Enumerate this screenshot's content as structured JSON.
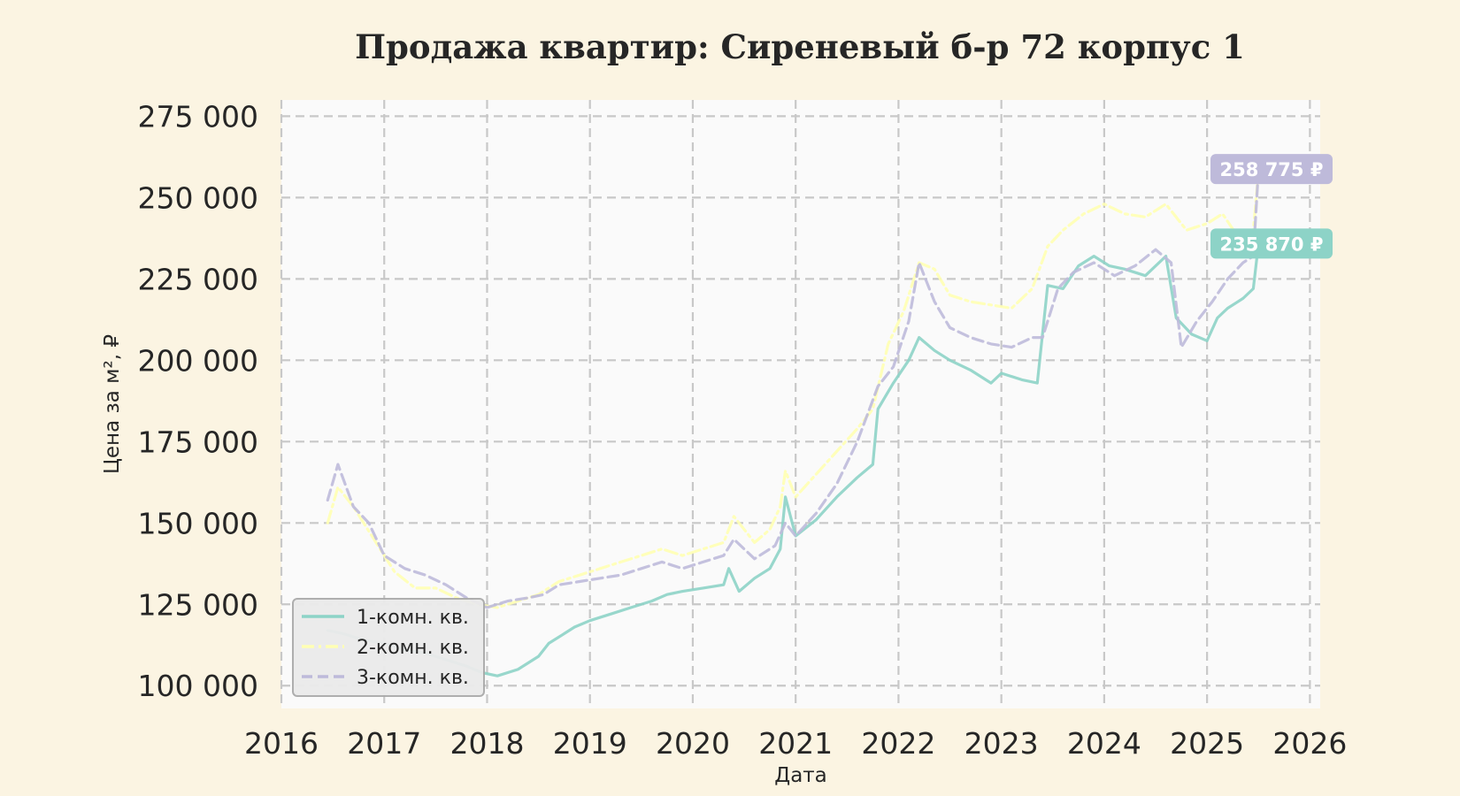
{
  "chart_data": {
    "type": "line",
    "title": "Продажа квартир: Сиреневый б-р 72 корпус 1",
    "xlabel": "Дата",
    "ylabel": "Цена за м², ₽",
    "xlim": [
      2016.0,
      2026.1
    ],
    "ylim": [
      93000,
      280000
    ],
    "grid": true,
    "legend_position": "lower-left",
    "x_ticks": [
      "2016",
      "2017",
      "2018",
      "2019",
      "2020",
      "2021",
      "2022",
      "2023",
      "2024",
      "2025",
      "2026"
    ],
    "y_ticks": [
      {
        "value": 100000,
        "label": "100 000"
      },
      {
        "value": 125000,
        "label": "125 000"
      },
      {
        "value": 150000,
        "label": "150 000"
      },
      {
        "value": 175000,
        "label": "175 000"
      },
      {
        "value": 200000,
        "label": "200 000"
      },
      {
        "value": 225000,
        "label": "225 000"
      },
      {
        "value": 250000,
        "label": "250 000"
      },
      {
        "value": 275000,
        "label": "275 000"
      }
    ],
    "series": [
      {
        "name": "1-комн. кв.",
        "color": "#8dd3c7",
        "dash": "solid",
        "end_label": "235 870 ₽",
        "x": [
          2016.45,
          2016.6,
          2016.8,
          2017.0,
          2017.2,
          2017.4,
          2017.6,
          2017.8,
          2017.95,
          2018.1,
          2018.3,
          2018.5,
          2018.6,
          2018.75,
          2018.85,
          2019.0,
          2019.2,
          2019.4,
          2019.6,
          2019.75,
          2019.9,
          2020.1,
          2020.3,
          2020.35,
          2020.45,
          2020.6,
          2020.75,
          2020.85,
          2020.9,
          2021.0,
          2021.2,
          2021.4,
          2021.6,
          2021.75,
          2021.8,
          2021.95,
          2022.1,
          2022.2,
          2022.35,
          2022.5,
          2022.7,
          2022.9,
          2023.0,
          2023.2,
          2023.35,
          2023.45,
          2023.6,
          2023.75,
          2023.9,
          2024.05,
          2024.2,
          2024.4,
          2024.6,
          2024.7,
          2024.85,
          2025.0,
          2025.1,
          2025.2,
          2025.35,
          2025.45,
          2025.5
        ],
        "y": [
          117000,
          116000,
          114000,
          113000,
          111000,
          110000,
          108000,
          106000,
          104000,
          103000,
          105000,
          109000,
          113000,
          116000,
          118000,
          120000,
          122000,
          124000,
          126000,
          128000,
          129000,
          130000,
          131000,
          136000,
          129000,
          133000,
          136000,
          142000,
          158000,
          146000,
          151000,
          158000,
          164000,
          168000,
          185000,
          193000,
          200000,
          207000,
          203000,
          200000,
          197000,
          193000,
          196000,
          194000,
          193000,
          223000,
          222000,
          229000,
          232000,
          229000,
          228000,
          226000,
          232000,
          213000,
          208000,
          206000,
          213000,
          216000,
          219000,
          222000,
          235870
        ]
      },
      {
        "name": "2-комн. кв.",
        "color": "#ffffb3",
        "dash": "dashdot",
        "end_label": "",
        "x": [
          2016.45,
          2016.55,
          2016.7,
          2016.9,
          2017.1,
          2017.3,
          2017.5,
          2017.7,
          2017.9,
          2018.1,
          2018.3,
          2018.5,
          2018.7,
          2018.9,
          2019.1,
          2019.3,
          2019.5,
          2019.7,
          2019.9,
          2020.1,
          2020.3,
          2020.4,
          2020.6,
          2020.75,
          2020.85,
          2020.9,
          2021.0,
          2021.2,
          2021.4,
          2021.6,
          2021.75,
          2021.9,
          2022.05,
          2022.2,
          2022.35,
          2022.5,
          2022.7,
          2022.9,
          2023.1,
          2023.3,
          2023.45,
          2023.6,
          2023.8,
          2024.0,
          2024.2,
          2024.4,
          2024.6,
          2024.8,
          2025.0,
          2025.15,
          2025.3,
          2025.45,
          2025.5
        ],
        "y": [
          150000,
          161000,
          155000,
          145000,
          135000,
          130000,
          130000,
          127000,
          125000,
          124000,
          126000,
          128000,
          132000,
          134000,
          136000,
          138000,
          140000,
          142000,
          140000,
          142000,
          144000,
          152000,
          144000,
          148000,
          155000,
          166000,
          158000,
          165000,
          172000,
          179000,
          185000,
          205000,
          215000,
          230000,
          228000,
          220000,
          218000,
          217000,
          216000,
          222000,
          235000,
          240000,
          245000,
          248000,
          245000,
          244000,
          248000,
          240000,
          242000,
          245000,
          238000,
          240000,
          258000
        ]
      },
      {
        "name": "3-комн. кв.",
        "color": "#bebada",
        "dash": "dashed",
        "end_label": "258 775 ₽",
        "x": [
          2016.45,
          2016.55,
          2016.7,
          2016.85,
          2017.0,
          2017.2,
          2017.4,
          2017.6,
          2017.8,
          2018.0,
          2018.2,
          2018.4,
          2018.55,
          2018.7,
          2018.9,
          2019.1,
          2019.3,
          2019.5,
          2019.7,
          2019.9,
          2020.1,
          2020.3,
          2020.4,
          2020.6,
          2020.8,
          2020.9,
          2021.0,
          2021.2,
          2021.4,
          2021.6,
          2021.8,
          2021.95,
          2022.1,
          2022.2,
          2022.35,
          2022.5,
          2022.7,
          2022.9,
          2023.1,
          2023.3,
          2023.4,
          2023.55,
          2023.7,
          2023.9,
          2024.1,
          2024.3,
          2024.5,
          2024.65,
          2024.75,
          2024.9,
          2025.05,
          2025.2,
          2025.35,
          2025.45,
          2025.5
        ],
        "y": [
          157000,
          168000,
          155000,
          150000,
          140000,
          136000,
          134000,
          131000,
          127000,
          124000,
          126000,
          127000,
          128000,
          131000,
          132000,
          133000,
          134000,
          136000,
          138000,
          136000,
          138000,
          140000,
          145000,
          139000,
          143000,
          150000,
          146000,
          153000,
          162000,
          175000,
          192000,
          198000,
          212000,
          230000,
          218000,
          210000,
          207000,
          205000,
          204000,
          207000,
          207000,
          222000,
          227000,
          230000,
          226000,
          229000,
          234000,
          230000,
          204000,
          212000,
          218000,
          225000,
          230000,
          232000,
          258775
        ]
      }
    ]
  }
}
